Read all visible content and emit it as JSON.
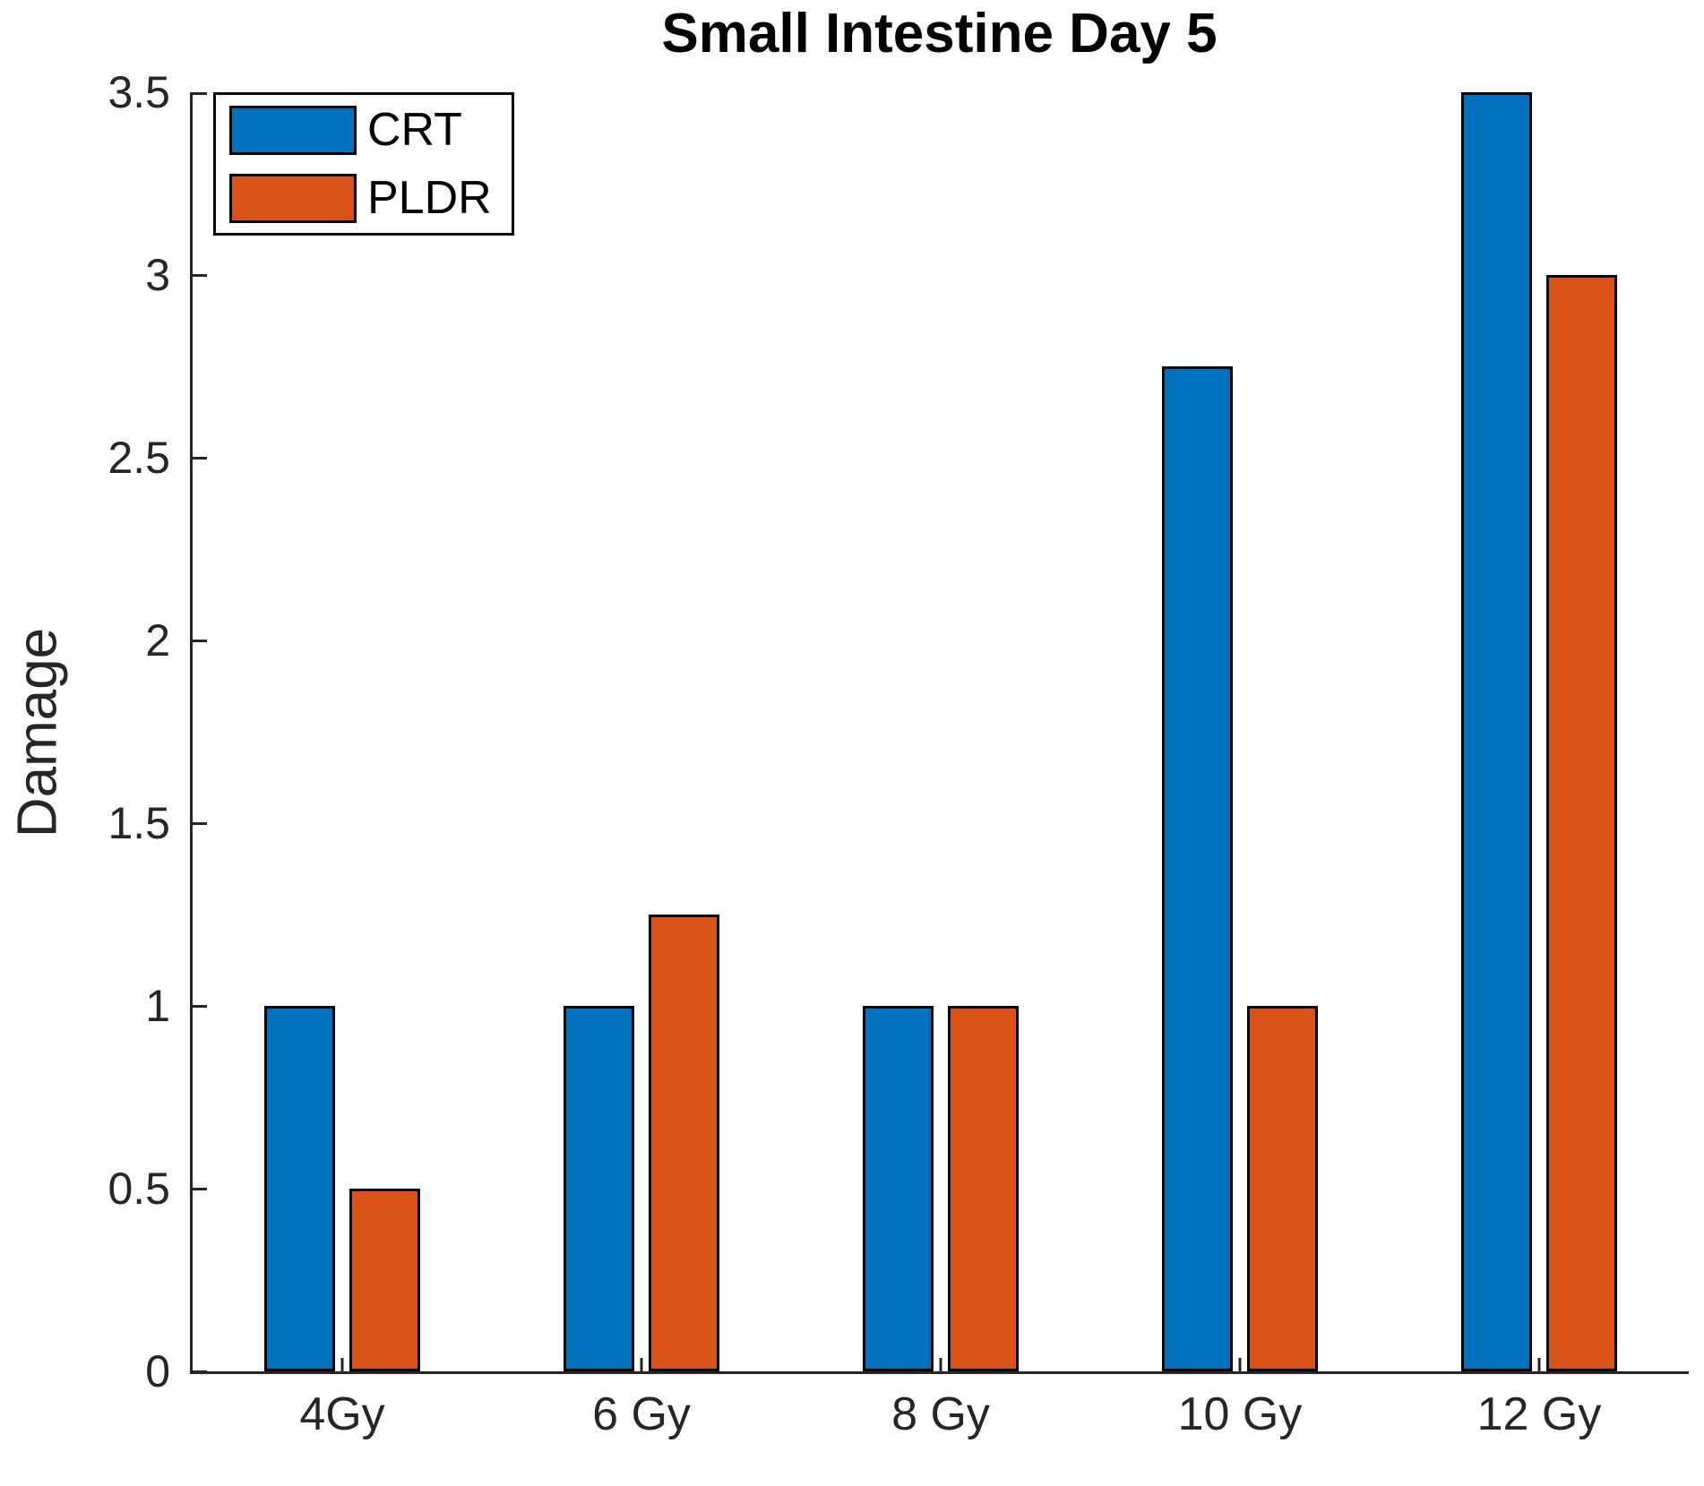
{
  "figure": {
    "title": "Small Intestine Day 5",
    "ylabel": "Damage"
  },
  "chart_data": {
    "type": "bar",
    "title": "Small Intestine Day 5",
    "xlabel": "",
    "ylabel": "Damage",
    "categories": [
      "4Gy",
      "6 Gy",
      "8 Gy",
      "10 Gy",
      "12 Gy"
    ],
    "series": [
      {
        "name": "CRT",
        "color": "#0072BD",
        "values": [
          1.0,
          1.0,
          1.0,
          2.75,
          3.5
        ]
      },
      {
        "name": "PLDR",
        "color": "#D95319",
        "values": [
          0.5,
          1.25,
          1.0,
          1.0,
          3.0
        ]
      }
    ],
    "ylim": [
      0,
      3.5
    ],
    "yticks": [
      0,
      0.5,
      1,
      1.5,
      2,
      2.5,
      3,
      3.5
    ],
    "ytick_labels": [
      "0",
      "0.5",
      "1",
      "1.5",
      "2",
      "2.5",
      "3",
      "3.5"
    ],
    "grid": false,
    "legend_position": "top-left",
    "bar_edge_color": "#000000",
    "axis_color": "#262626",
    "background_color": "#FFFFFF"
  }
}
